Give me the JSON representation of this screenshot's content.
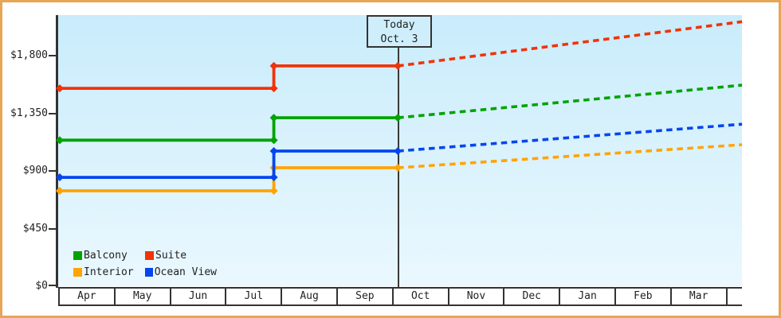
{
  "colors": {
    "frame_border": "#e7a556",
    "axis": "#333333",
    "text": "#222222",
    "plot_bg_top": "#c9ecfb",
    "plot_bg_bottom": "#eaf8fe",
    "today_line": "#3a3a3a"
  },
  "chart_data": {
    "type": "line",
    "title": "",
    "xlabel": "",
    "ylabel": "",
    "x_categories": [
      "Apr",
      "May",
      "Jun",
      "Jul",
      "Aug",
      "Sep",
      "Oct",
      "Nov",
      "Dec",
      "Jan",
      "Feb",
      "Mar"
    ],
    "y_ticks": [
      {
        "label": "$1,800",
        "value": 1800
      },
      {
        "label": "$1,350",
        "value": 1350
      },
      {
        "label": "$900",
        "value": 900
      },
      {
        "label": "$450",
        "value": 450
      },
      {
        "label": "$0",
        "value": 0
      }
    ],
    "ylim": [
      0,
      2115
    ],
    "x_range_months": [
      0,
      12.27
    ],
    "grid": false,
    "today_annotation": {
      "line1": "Today",
      "line2": "Oct. 3",
      "month_x": 6.08
    },
    "legend": {
      "position": "bottom-left",
      "rows": [
        [
          "Balcony",
          "Suite"
        ],
        [
          "Interior",
          "Ocean View"
        ]
      ]
    },
    "series": [
      {
        "name": "Interior",
        "color": "#ffa405",
        "solid_points": [
          [
            0,
            745
          ],
          [
            3.85,
            745
          ],
          [
            3.85,
            925
          ],
          [
            6.08,
            925
          ]
        ],
        "dashed_points": [
          [
            6.08,
            925
          ],
          [
            12.27,
            1105
          ]
        ]
      },
      {
        "name": "Ocean View",
        "color": "#0545f0",
        "solid_points": [
          [
            0,
            850
          ],
          [
            3.85,
            850
          ],
          [
            3.85,
            1055
          ],
          [
            6.08,
            1055
          ]
        ],
        "dashed_points": [
          [
            6.08,
            1055
          ],
          [
            12.27,
            1265
          ]
        ]
      },
      {
        "name": "Balcony",
        "color": "#00a300",
        "solid_points": [
          [
            0,
            1140
          ],
          [
            3.85,
            1140
          ],
          [
            3.85,
            1315
          ],
          [
            6.08,
            1315
          ]
        ],
        "dashed_points": [
          [
            6.08,
            1315
          ],
          [
            12.27,
            1570
          ]
        ]
      },
      {
        "name": "Suite",
        "color": "#f23208",
        "solid_points": [
          [
            0,
            1545
          ],
          [
            3.85,
            1545
          ],
          [
            3.85,
            1720
          ],
          [
            6.08,
            1720
          ]
        ],
        "dashed_points": [
          [
            6.08,
            1720
          ],
          [
            12.27,
            2065
          ]
        ]
      }
    ]
  }
}
